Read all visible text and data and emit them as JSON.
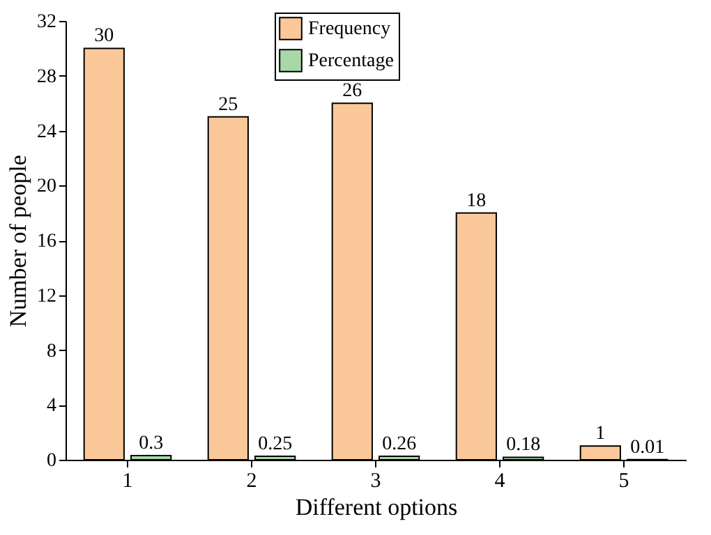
{
  "chart_data": {
    "type": "bar",
    "xlabel": "Different options",
    "ylabel": "Number of people",
    "categories": [
      "1",
      "2",
      "3",
      "4",
      "5"
    ],
    "series": [
      {
        "name": "Frequency",
        "color": "#fbc89a",
        "values": [
          30,
          25,
          26,
          18,
          1
        ]
      },
      {
        "name": "Percentage",
        "color": "#a8d8a8",
        "values": [
          0.3,
          0.25,
          0.26,
          0.18,
          0.01
        ]
      }
    ],
    "ylim": [
      0,
      32
    ],
    "yticks": [
      0,
      4,
      8,
      12,
      16,
      20,
      24,
      28,
      32
    ],
    "data_labels": true,
    "legend": "top",
    "grid": false
  }
}
